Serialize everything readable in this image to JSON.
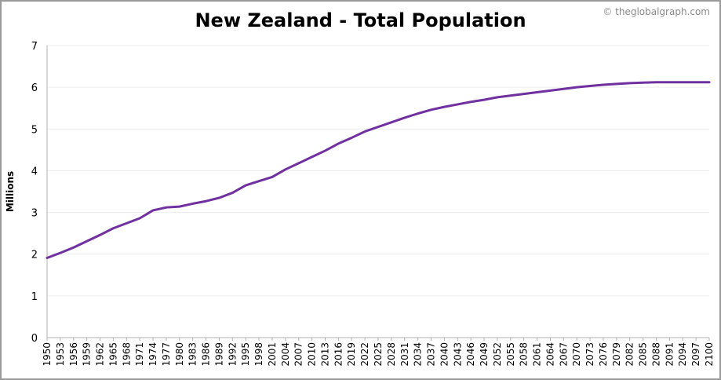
{
  "chart_data": {
    "type": "line",
    "title": "New Zealand - Total Population",
    "credit": "© theglobalgraph.com",
    "xlabel": "",
    "ylabel": "Millions",
    "xlim": [
      1950,
      2100
    ],
    "ylim": [
      0,
      7
    ],
    "yticks": [
      0,
      1,
      2,
      3,
      4,
      5,
      6,
      7
    ],
    "xticks": [
      1950,
      1953,
      1956,
      1959,
      1962,
      1965,
      1968,
      1971,
      1974,
      1977,
      1980,
      1983,
      1986,
      1989,
      1992,
      1995,
      1998,
      2001,
      2004,
      2007,
      2010,
      2013,
      2016,
      2019,
      2022,
      2025,
      2028,
      2031,
      2034,
      2037,
      2040,
      2043,
      2046,
      2049,
      2052,
      2055,
      2058,
      2061,
      2064,
      2067,
      2070,
      2073,
      2076,
      2079,
      2082,
      2085,
      2088,
      2091,
      2094,
      2097,
      2100
    ],
    "grid": true,
    "color": "#7030a0",
    "series": [
      {
        "x": [
          1950,
          1953,
          1956,
          1959,
          1962,
          1965,
          1968,
          1971,
          1974,
          1977,
          1980,
          1983,
          1986,
          1989,
          1992,
          1995,
          1998,
          2001,
          2004,
          2007,
          2010,
          2013,
          2016,
          2019,
          2022,
          2025,
          2028,
          2031,
          2034,
          2037,
          2040,
          2043,
          2046,
          2049,
          2052,
          2055,
          2058,
          2061,
          2064,
          2067,
          2070,
          2073,
          2076,
          2079,
          2082,
          2085,
          2088,
          2091,
          2094,
          2097,
          2100
        ],
        "values": [
          1.91,
          2.03,
          2.16,
          2.31,
          2.46,
          2.62,
          2.74,
          2.86,
          3.05,
          3.12,
          3.14,
          3.21,
          3.27,
          3.35,
          3.47,
          3.65,
          3.75,
          3.85,
          4.03,
          4.18,
          4.33,
          4.48,
          4.65,
          4.79,
          4.94,
          5.05,
          5.16,
          5.27,
          5.37,
          5.46,
          5.53,
          5.59,
          5.65,
          5.7,
          5.76,
          5.8,
          5.84,
          5.88,
          5.92,
          5.96,
          6.0,
          6.03,
          6.06,
          6.08,
          6.1,
          6.11,
          6.12,
          6.12,
          6.12,
          6.12,
          6.12
        ]
      }
    ]
  }
}
